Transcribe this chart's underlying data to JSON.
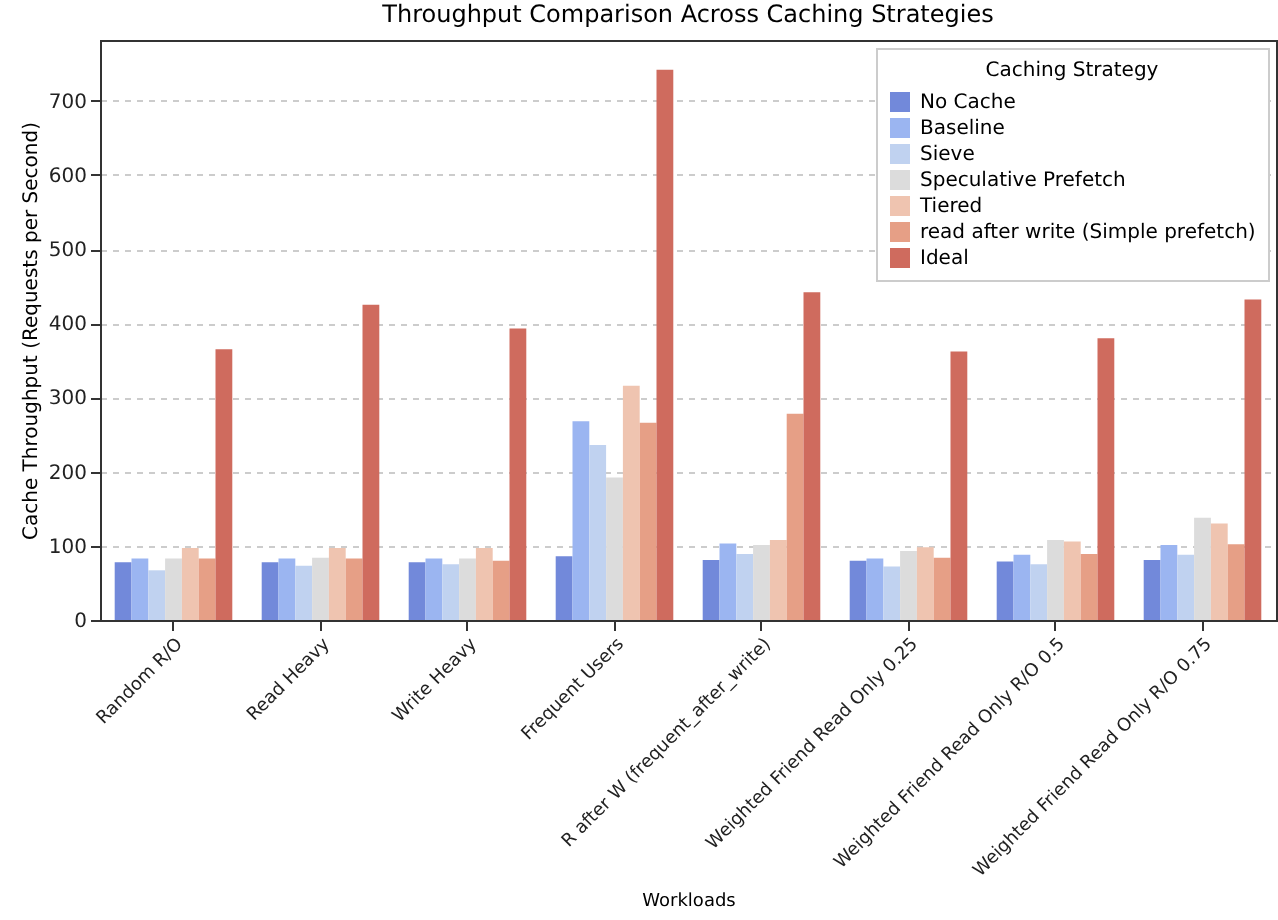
{
  "chart_data": {
    "type": "bar",
    "title": "Throughput Comparison Across Caching Strategies",
    "xlabel": "Workloads",
    "ylabel": "Cache Throughput (Requests per Second)",
    "legend_title": "Caching Strategy",
    "categories": [
      "Random R/O",
      "Read Heavy",
      "Write Heavy",
      "Frequent Users",
      "R after W (frequent_after_write)",
      "Weighted Friend Read Only 0.25",
      "Weighted Friend Read Only R/O 0.5",
      "Weighted Friend Read Only  R/O 0.75"
    ],
    "series": [
      {
        "name": "No Cache",
        "color": "#7289da",
        "values": [
          78,
          78,
          78,
          86,
          81,
          80,
          79,
          81
        ]
      },
      {
        "name": "Baseline",
        "color": "#9bb5f1",
        "values": [
          83,
          83,
          83,
          268,
          103,
          83,
          88,
          101
        ]
      },
      {
        "name": "Sieve",
        "color": "#c0d2f0",
        "values": [
          67,
          73,
          75,
          236,
          89,
          72,
          75,
          88
        ]
      },
      {
        "name": "Speculative Prefetch",
        "color": "#dcdcdc",
        "values": [
          83,
          84,
          83,
          192,
          101,
          93,
          108,
          138
        ]
      },
      {
        "name": "Tiered",
        "color": "#efc4b0",
        "values": [
          97,
          97,
          97,
          316,
          108,
          98,
          106,
          130
        ]
      },
      {
        "name": "read after write (Simple prefetch)",
        "color": "#e69f86",
        "values": [
          83,
          83,
          80,
          266,
          278,
          84,
          89,
          102
        ]
      },
      {
        "name": "Ideal",
        "color": "#cf6b5e",
        "values": [
          365,
          425,
          393,
          742,
          442,
          362,
          380,
          432
        ]
      }
    ],
    "ylim": [
      0,
      782
    ],
    "yticks": [
      0,
      100,
      200,
      300,
      400,
      500,
      600,
      700
    ],
    "grid": "y",
    "legend": "top right"
  }
}
